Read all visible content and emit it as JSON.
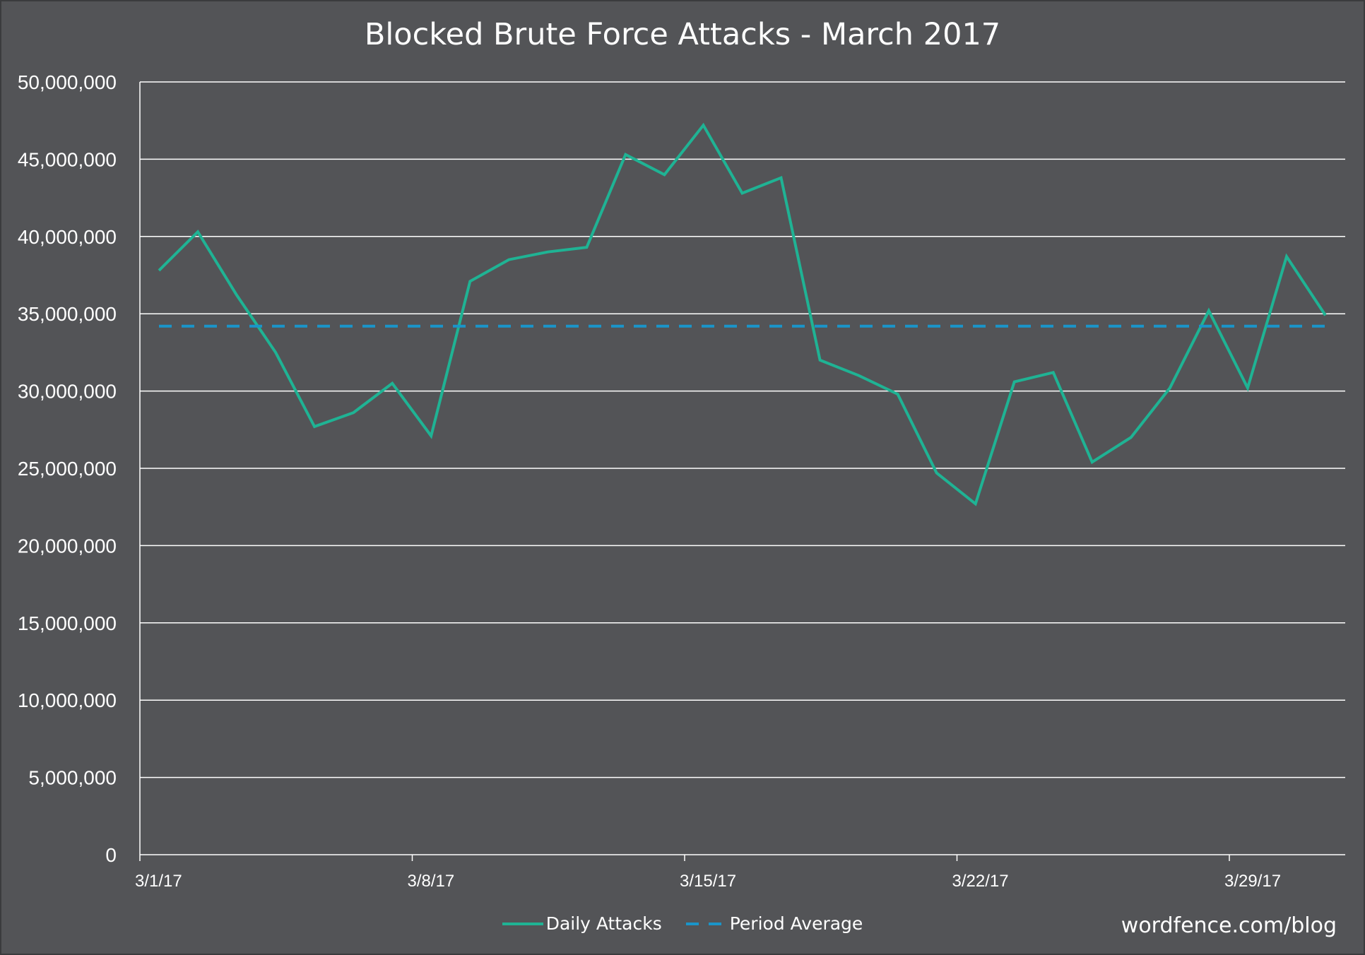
{
  "chart_data": {
    "type": "line",
    "title": "Blocked Brute Force Attacks - March 2017",
    "xlabel": "",
    "ylabel": "",
    "ylim": [
      0,
      50000000
    ],
    "y_ticks": [
      "0",
      "5,000,000",
      "10,000,000",
      "15,000,000",
      "20,000,000",
      "25,000,000",
      "30,000,000",
      "35,000,000",
      "40,000,000",
      "45,000,000",
      "50,000,000"
    ],
    "x_tick_labels": [
      "3/1/17",
      "3/8/17",
      "3/15/17",
      "3/22/17",
      "3/29/17"
    ],
    "x": [
      "3/1/17",
      "3/2/17",
      "3/3/17",
      "3/4/17",
      "3/5/17",
      "3/6/17",
      "3/7/17",
      "3/8/17",
      "3/9/17",
      "3/10/17",
      "3/11/17",
      "3/12/17",
      "3/13/17",
      "3/14/17",
      "3/15/17",
      "3/16/17",
      "3/17/17",
      "3/18/17",
      "3/19/17",
      "3/20/17",
      "3/21/17",
      "3/22/17",
      "3/23/17",
      "3/24/17",
      "3/25/17",
      "3/26/17",
      "3/27/17",
      "3/28/17",
      "3/29/17",
      "3/30/17",
      "3/31/17"
    ],
    "series": [
      {
        "name": "Daily Attacks",
        "style": "solid",
        "color": "#1fb394",
        "values": [
          37800000,
          40300000,
          36200000,
          32500000,
          27700000,
          28600000,
          30500000,
          27100000,
          37100000,
          38500000,
          39000000,
          39300000,
          45300000,
          44000000,
          47200000,
          42800000,
          43800000,
          32000000,
          31000000,
          29800000,
          24700000,
          22700000,
          30600000,
          31200000,
          25400000,
          27000000,
          30200000,
          35200000,
          30200000,
          38700000,
          34900000
        ]
      },
      {
        "name": "Period Average",
        "style": "dashed",
        "color": "#1a95c9",
        "values": [
          34200000,
          34200000,
          34200000,
          34200000,
          34200000,
          34200000,
          34200000,
          34200000,
          34200000,
          34200000,
          34200000,
          34200000,
          34200000,
          34200000,
          34200000,
          34200000,
          34200000,
          34200000,
          34200000,
          34200000,
          34200000,
          34200000,
          34200000,
          34200000,
          34200000,
          34200000,
          34200000,
          34200000,
          34200000,
          34200000,
          34200000
        ]
      }
    ],
    "grid": true,
    "legend_position": "bottom"
  },
  "watermark": "wordfence.com/blog",
  "colors": {
    "background": "#535457",
    "gridline": "#ffffff",
    "text": "#ffffff"
  }
}
